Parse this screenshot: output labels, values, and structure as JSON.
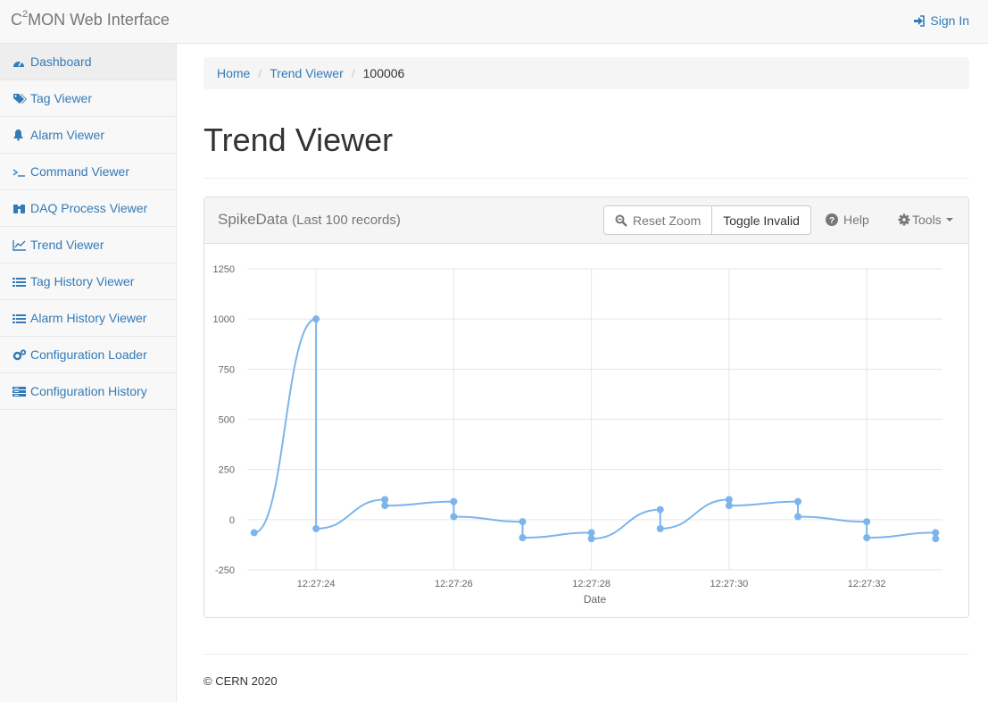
{
  "navbar": {
    "brand_prefix": "C",
    "brand_sup": "2",
    "brand_suffix": "MON Web Interface",
    "signin_label": "Sign In"
  },
  "sidebar": {
    "items": [
      {
        "label": "Dashboard",
        "icon": "dashboard-icon"
      },
      {
        "label": "Tag Viewer",
        "icon": "tags-icon"
      },
      {
        "label": "Alarm Viewer",
        "icon": "bell-icon"
      },
      {
        "label": "Command Viewer",
        "icon": "terminal-icon"
      },
      {
        "label": "DAQ Process Viewer",
        "icon": "binoculars-icon"
      },
      {
        "label": "Trend Viewer",
        "icon": "line-chart-icon"
      },
      {
        "label": "Tag History Viewer",
        "icon": "list-icon"
      },
      {
        "label": "Alarm History Viewer",
        "icon": "list-icon"
      },
      {
        "label": "Configuration Loader",
        "icon": "cogs-icon"
      },
      {
        "label": "Configuration History",
        "icon": "server-icon"
      }
    ]
  },
  "breadcrumb": {
    "home": "Home",
    "section": "Trend Viewer",
    "current": "100006"
  },
  "page": {
    "title": "Trend Viewer"
  },
  "panel": {
    "title": "SpikeData",
    "subtitle": "(Last 100 records)",
    "reset_zoom_label": "Reset Zoom",
    "toggle_invalid_label": "Toggle Invalid",
    "help_label": "Help",
    "tools_label": "Tools"
  },
  "chart_data": {
    "type": "line",
    "title": "SpikeData",
    "xlabel": "Date",
    "ylabel": "",
    "ylim": [
      -250,
      1250
    ],
    "yticks": [
      "1250",
      "1000",
      "750",
      "500",
      "250",
      "0",
      "-250"
    ],
    "xticks": [
      "12:27:24",
      "12:27:26",
      "12:27:28",
      "12:27:30",
      "12:27:32"
    ],
    "xrange_seconds": [
      23.0,
      33.1
    ],
    "series": [
      {
        "name": "SpikeData",
        "color": "#7cb5ec",
        "points": [
          [
            23.1,
            -65
          ],
          [
            24.0,
            1000
          ],
          [
            24.0,
            -45
          ],
          [
            25.0,
            100
          ],
          [
            25.0,
            70
          ],
          [
            26.0,
            90
          ],
          [
            26.0,
            15
          ],
          [
            27.0,
            -10
          ],
          [
            27.0,
            -90
          ],
          [
            28.0,
            -65
          ],
          [
            28.0,
            -95
          ],
          [
            29.0,
            50
          ],
          [
            29.0,
            -45
          ],
          [
            30.0,
            100
          ],
          [
            30.0,
            70
          ],
          [
            31.0,
            90
          ],
          [
            31.0,
            15
          ],
          [
            32.0,
            -10
          ],
          [
            32.0,
            -90
          ],
          [
            33.0,
            -65
          ],
          [
            33.0,
            -95
          ]
        ]
      }
    ]
  },
  "footer": {
    "copyright": "© CERN 2020"
  }
}
